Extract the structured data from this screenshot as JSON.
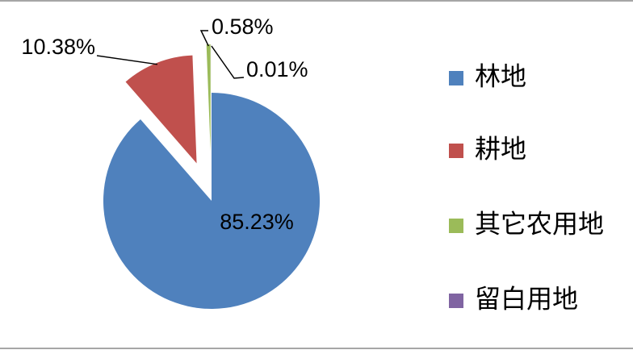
{
  "chart_data": {
    "type": "pie",
    "categories": [
      "林地",
      "耕地",
      "其它农用地",
      "留白用地"
    ],
    "values": [
      85.23,
      10.38,
      0.58,
      0.01
    ],
    "value_labels": [
      "85.23%",
      "10.38%",
      "0.58%",
      "0.01%"
    ],
    "colors": [
      "#4f81bd",
      "#c0504d",
      "#9bbb59",
      "#8064a2"
    ],
    "legend": "right"
  }
}
